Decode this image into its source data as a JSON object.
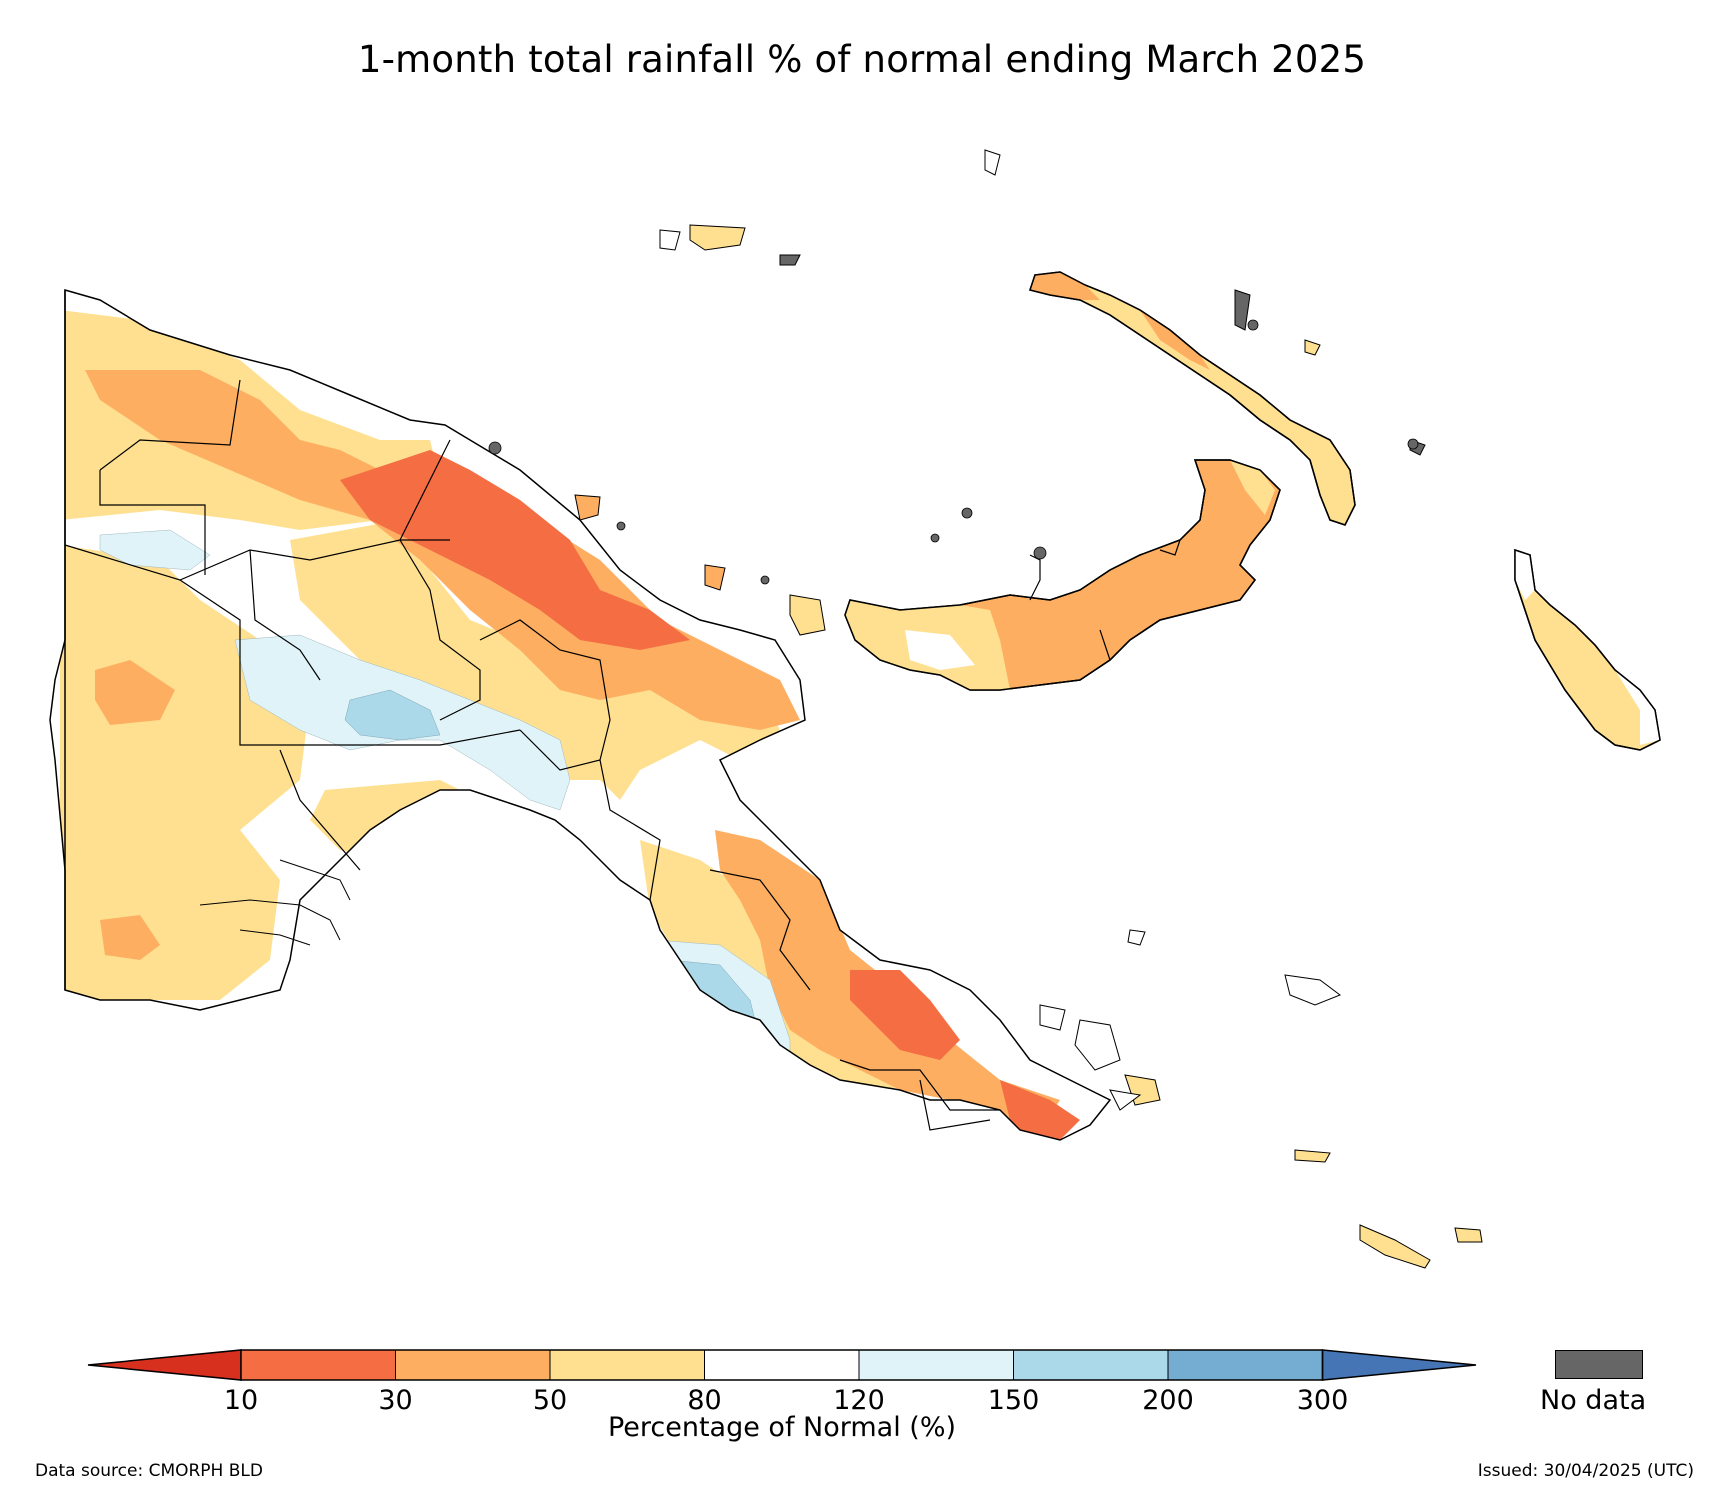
{
  "title": "1-month total rainfall % of normal ending March 2025",
  "legend": {
    "label": "Percentage of Normal (%)",
    "ticks": [
      "10",
      "30",
      "50",
      "80",
      "120",
      "150",
      "200",
      "300"
    ],
    "bins": [
      {
        "range": "<10",
        "color": "#d7301f"
      },
      {
        "range": "10-30",
        "color": "#f46d43"
      },
      {
        "range": "30-50",
        "color": "#fdae61"
      },
      {
        "range": "50-80",
        "color": "#fee090"
      },
      {
        "range": "80-120",
        "color": "#ffffff"
      },
      {
        "range": "120-150",
        "color": "#e0f3f8"
      },
      {
        "range": "150-200",
        "color": "#abd9e9"
      },
      {
        "range": "200-300",
        "color": "#74add1"
      },
      {
        "range": ">300",
        "color": "#4575b4"
      }
    ],
    "no_data_label": "No data",
    "no_data_color": "#666666"
  },
  "footer": {
    "source": "Data source: CMORPH BLD",
    "issued": "Issued: 30/04/2025 (UTC)"
  },
  "map": {
    "region": "Papua New Guinea",
    "areas": [
      "mainland",
      "new-britain",
      "new-ireland",
      "bougainville",
      "manus-islands",
      "milne-bay-islands",
      "trobriand-islands"
    ]
  }
}
